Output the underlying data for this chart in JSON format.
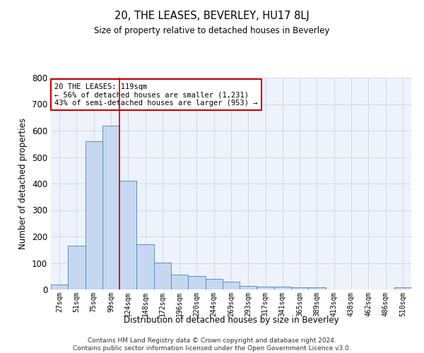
{
  "title": "20, THE LEASES, BEVERLEY, HU17 8LJ",
  "subtitle": "Size of property relative to detached houses in Beverley",
  "xlabel": "Distribution of detached houses by size in Beverley",
  "ylabel": "Number of detached properties",
  "categories": [
    "27sqm",
    "51sqm",
    "75sqm",
    "99sqm",
    "124sqm",
    "148sqm",
    "172sqm",
    "196sqm",
    "220sqm",
    "244sqm",
    "269sqm",
    "293sqm",
    "317sqm",
    "341sqm",
    "365sqm",
    "389sqm",
    "413sqm",
    "438sqm",
    "462sqm",
    "486sqm",
    "510sqm"
  ],
  "values": [
    18,
    165,
    560,
    620,
    410,
    170,
    102,
    55,
    50,
    40,
    30,
    14,
    12,
    10,
    9,
    7,
    0,
    0,
    0,
    0,
    7
  ],
  "bar_color": "#c5d8f0",
  "bar_edge_color": "#5a8fc2",
  "red_line_x": 3.5,
  "annotation_text": "20 THE LEASES: 119sqm\n← 56% of detached houses are smaller (1,231)\n43% of semi-detached houses are larger (953) →",
  "annotation_box_color": "#ffffff",
  "annotation_box_edge": "#cc0000",
  "grid_color": "#d0d8e8",
  "background_color": "#eef2fa",
  "red_line_color": "#cc0000",
  "footer": "Contains HM Land Registry data © Crown copyright and database right 2024.\nContains public sector information licensed under the Open Government Licence v3.0.",
  "ylim": [
    0,
    800
  ],
  "yticks": [
    0,
    100,
    200,
    300,
    400,
    500,
    600,
    700,
    800
  ]
}
